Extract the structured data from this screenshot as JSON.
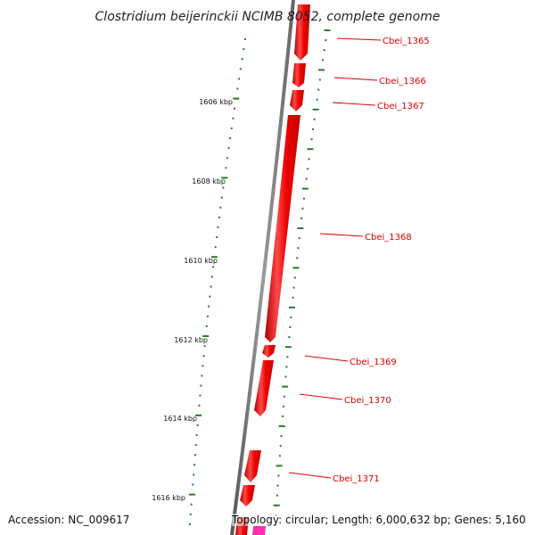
{
  "title": "Clostridium beijerinckii NCIMB 8052, complete genome",
  "accession": "Accession: NC_009617",
  "topology": "Topology: circular; Length: 6,000,632 bp; Genes: 5,160",
  "colors": {
    "backbone": "#7f7f7f",
    "gene": "#ee0000",
    "gene_highlight": "#ff8080",
    "ticks": "#2a7a2a",
    "label": "#e00000",
    "pink": "#ff2fae"
  },
  "kbp_labels": [
    "1606 kbp",
    "1608 kbp",
    "1610 kbp",
    "1612 kbp",
    "1614 kbp",
    "1616 kbp"
  ],
  "genes": [
    {
      "label": "Cbei_1365"
    },
    {
      "label": "Cbei_1366"
    },
    {
      "label": "Cbei_1367"
    },
    {
      "label": "Cbei_1368"
    },
    {
      "label": "Cbei_1369"
    },
    {
      "label": "Cbei_1370"
    },
    {
      "label": "Cbei_1371"
    }
  ]
}
